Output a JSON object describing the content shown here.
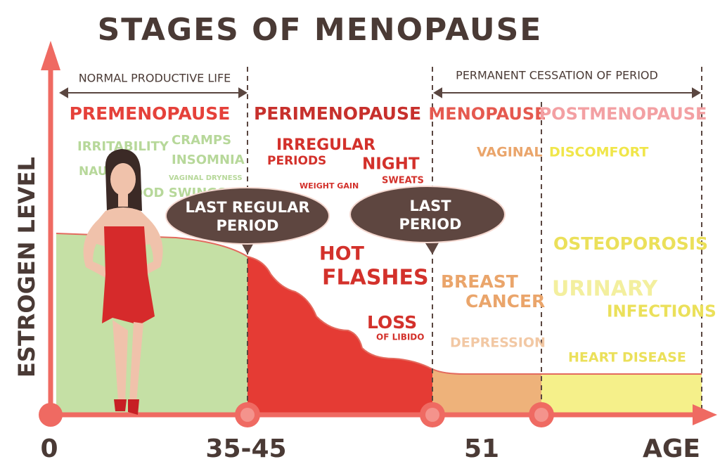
{
  "title": "STAGES OF MENOPAUSE",
  "y_axis_label": "ESTROGEN LEVEL",
  "x_axis": {
    "labels": [
      "0",
      "35-45",
      "51"
    ],
    "title": "AGE"
  },
  "spans": [
    "NORMAL PRODUCTIVE LIFE",
    "PERMANENT CESSATION OF PERIOD"
  ],
  "stages": [
    {
      "name": "PREMENOPAUSE",
      "symptoms": [
        "IRRITABILITY",
        "CRAMPS",
        "INSOMNIA",
        "NAUSEA",
        "VAGINAL DRYNESS",
        "MOOD SWINGS"
      ]
    },
    {
      "name": "PERIMENOPAUSE",
      "symptoms": [
        "IRREGULAR",
        "PERIODS",
        "NIGHT",
        "SWEATS",
        "WEIGHT GAIN",
        "HOT",
        "FLASHES",
        "LOSS",
        "OF LIBIDO"
      ]
    },
    {
      "name": "MENOPAUSE",
      "symptoms": [
        "VAGINAL",
        "BREAST",
        "CANCER",
        "DEPRESSION"
      ]
    },
    {
      "name": "POSTMENOPAUSE",
      "symptoms": [
        "DISCOMFORT",
        "OSTEOPOROSIS",
        "URINARY",
        "INFECTIONS",
        "HEART DISEASE"
      ]
    }
  ],
  "callouts": [
    [
      "LAST REGULAR",
      "PERIOD"
    ],
    [
      "LAST",
      "PERIOD"
    ]
  ]
}
